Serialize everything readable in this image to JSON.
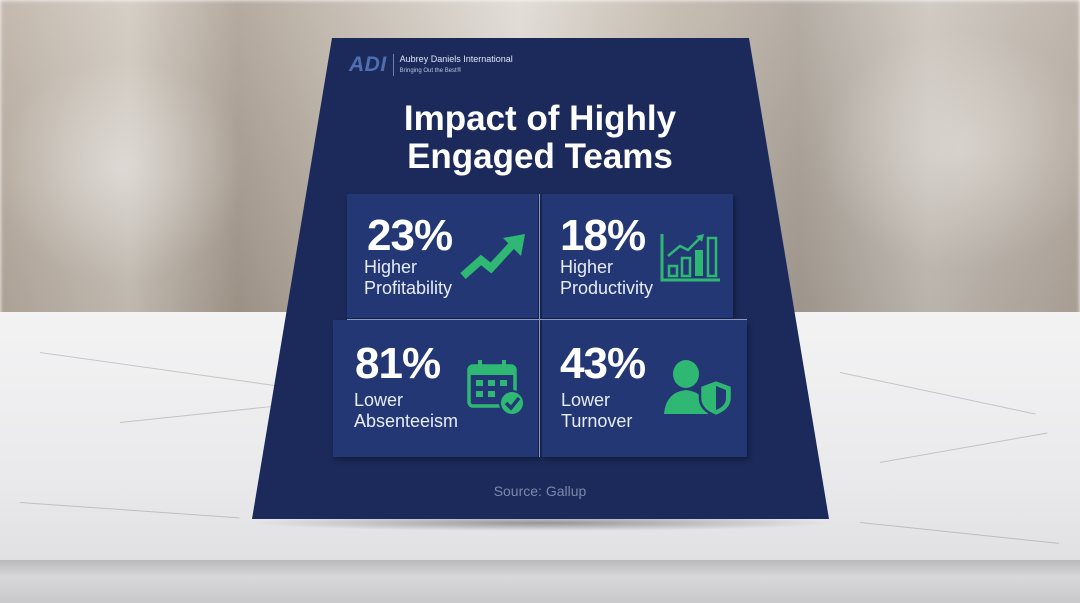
{
  "logo": {
    "mark": "ADI",
    "company": "Aubrey Daniels International",
    "tagline": "Bringing Out the Best®"
  },
  "title": {
    "line1": "Impact of Highly",
    "line2": "Engaged Teams"
  },
  "stats": [
    {
      "value": "23%",
      "label_line1": "Higher",
      "label_line2": "Profitability",
      "icon": "trend-arrow-icon"
    },
    {
      "value": "18%",
      "label_line1": "Higher",
      "label_line2": "Productivity",
      "icon": "bar-chart-growth-icon"
    },
    {
      "value": "81%",
      "label_line1": "Lower",
      "label_line2": "Absenteeism",
      "icon": "calendar-check-icon"
    },
    {
      "value": "43%",
      "label_line1": "Lower",
      "label_line2": "Turnover",
      "icon": "person-shield-icon"
    }
  ],
  "source": "Source: Gallup",
  "colors": {
    "card": "#1b2a5b",
    "tile": "#233775",
    "accent": "#2fb873",
    "logo": "#4f6fb0"
  }
}
